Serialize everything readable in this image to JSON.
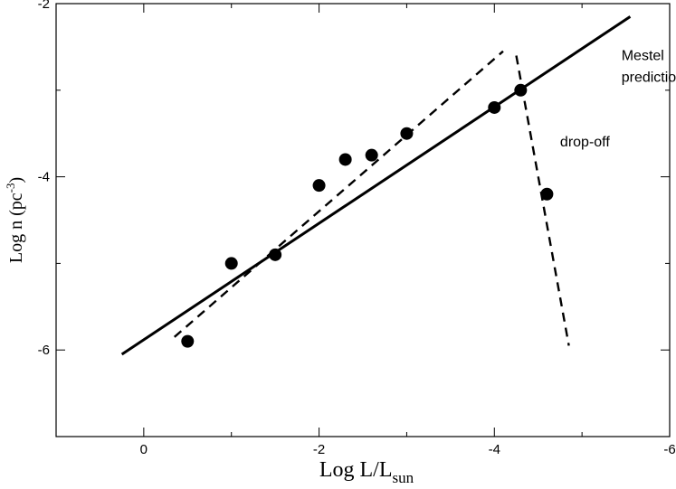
{
  "chart_data": {
    "type": "scatter",
    "title": "",
    "xlabel": {
      "main": "Log L/L",
      "sub": "sun"
    },
    "ylabel": {
      "pre": "Log n (pc",
      "sup": "-3",
      "post": ")"
    },
    "xlim": [
      1,
      -6
    ],
    "ylim": [
      -7,
      -2
    ],
    "xticks": [
      0,
      -2,
      -4,
      -6
    ],
    "yticks": [
      -2,
      -4,
      -6
    ],
    "xtick_labels": [
      "0",
      "-2",
      "-4",
      "-6"
    ],
    "ytick_labels": [
      "-2",
      "-4",
      "-6"
    ],
    "grid": false,
    "series": [
      {
        "kind": "points",
        "x": [
          -0.5,
          -1.0,
          -1.5,
          -2.0,
          -2.3,
          -2.6,
          -3.0,
          -4.0,
          -4.3,
          -4.6
        ],
        "y": [
          -5.9,
          -5.0,
          -4.9,
          -4.1,
          -3.8,
          -3.75,
          -3.5,
          -3.2,
          -3.0,
          -4.2
        ]
      },
      {
        "kind": "solid-line",
        "x": [
          0.25,
          -5.55
        ],
        "y": [
          -6.05,
          -2.15
        ]
      },
      {
        "kind": "dashed-line",
        "x": [
          -0.35,
          -4.1
        ],
        "y": [
          -5.85,
          -2.55
        ]
      },
      {
        "kind": "dashed-line",
        "x": [
          -4.25,
          -4.85
        ],
        "y": [
          -2.6,
          -5.95
        ]
      }
    ],
    "annotations": [
      {
        "text_lines": [
          "Mestel",
          "prediction"
        ],
        "x": -5.45,
        "y": -2.65
      },
      {
        "text_lines": [
          "drop-off"
        ],
        "x": -4.75,
        "y": -3.65
      }
    ]
  }
}
